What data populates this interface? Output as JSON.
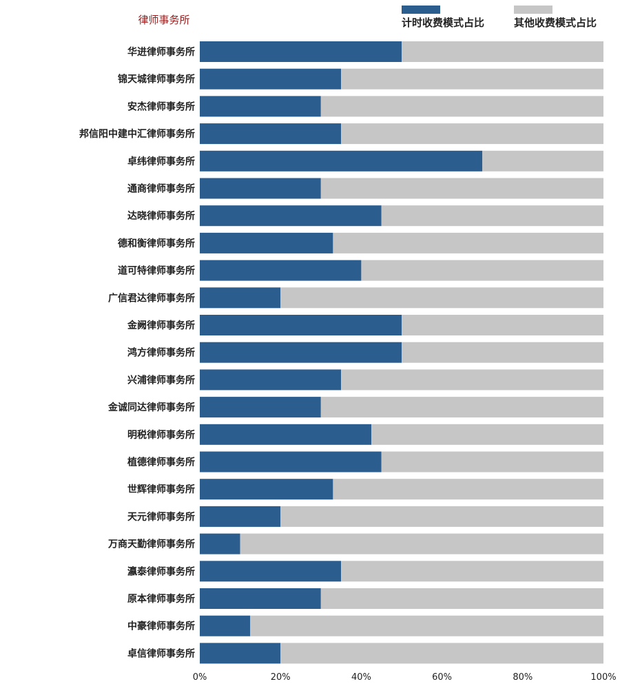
{
  "chart_data": {
    "type": "bar",
    "orientation": "horizontal",
    "stacked": true,
    "header_label": "律师事务所",
    "categories": [
      "华进律师事务所",
      "锦天城律师事务所",
      "安杰律师事务所",
      "邦信阳中建中汇律师事务所",
      "卓纬律师事务所",
      "通商律师事务所",
      "达晓律师事务所",
      "德和衡律师事务所",
      "道可特律师事务所",
      "广信君达律师事务所",
      "金阙律师事务所",
      "鸿方律师事务所",
      "兴浦律师事务所",
      "金诚同达律师事务所",
      "明税律师事务所",
      "植德律师事务所",
      "世辉律师事务所",
      "天元律师事务所",
      "万商天勤律师事务所",
      "瀛泰律师事务所",
      "原本律师事务所",
      "中豪律师事务所",
      "卓信律师事务所"
    ],
    "series": [
      {
        "name": "计时收费模式占比",
        "color": "#2c5d8f",
        "values": [
          50,
          35,
          30,
          35,
          70,
          30,
          45,
          33,
          40,
          20,
          50,
          50,
          35,
          30,
          42.5,
          45,
          33,
          20,
          10,
          35,
          30,
          12.5,
          20
        ]
      },
      {
        "name": "其他收费模式占比",
        "color": "#c6c6c6",
        "values": [
          50,
          65,
          70,
          65,
          30,
          70,
          55,
          67,
          60,
          80,
          50,
          50,
          65,
          70,
          57.5,
          55,
          67,
          80,
          90,
          65,
          70,
          87.5,
          80
        ]
      }
    ],
    "x_ticks": [
      "0%",
      "20%",
      "40%",
      "60%",
      "80%",
      "100%"
    ],
    "xlim": [
      0,
      100
    ],
    "legend_position": "top-right",
    "grid": false
  }
}
